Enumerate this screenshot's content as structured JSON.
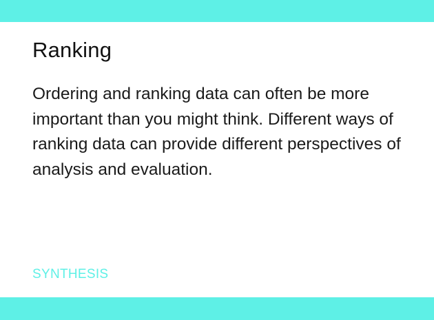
{
  "card": {
    "title": "Ranking",
    "description": "Ordering and ranking data can often be more important than you might think. Different ways of ranking data can provide different perspectives of analysis and evaluation.",
    "category": "SYNTHESIS"
  },
  "colors": {
    "accent": "#5ef0e6",
    "text": "#1a1a1a",
    "background": "#ffffff"
  }
}
